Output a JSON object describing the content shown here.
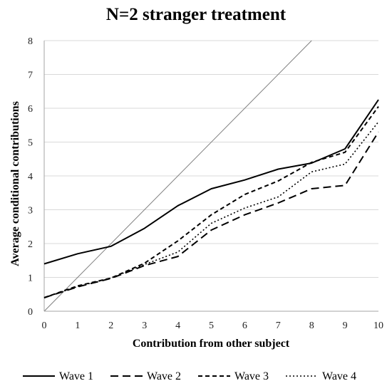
{
  "chart_data": {
    "type": "line",
    "title": "N=2 stranger treatment",
    "xlabel": "Contribution from other subject",
    "ylabel": "Average conditional contributions",
    "x": [
      0,
      1,
      2,
      3,
      4,
      5,
      6,
      7,
      8,
      9,
      10
    ],
    "xlim": [
      0,
      10
    ],
    "ylim": [
      0,
      8
    ],
    "xticks": [
      "0",
      "1",
      "2",
      "3",
      "4",
      "5",
      "6",
      "7",
      "8",
      "9",
      "10"
    ],
    "yticks": [
      "0",
      "1",
      "2",
      "3",
      "4",
      "5",
      "6",
      "7",
      "8"
    ],
    "grid": "horizontal",
    "legend_position": "bottom",
    "reference_line": {
      "from": [
        0,
        0
      ],
      "to": [
        8,
        8
      ],
      "color": "#7f7f7f"
    },
    "series": [
      {
        "name": "Wave 1",
        "style": "solid",
        "color": "#000000",
        "values": [
          1.4,
          1.7,
          1.92,
          2.45,
          3.12,
          3.62,
          3.88,
          4.2,
          4.38,
          4.8,
          6.25
        ]
      },
      {
        "name": "Wave 2",
        "style": "long-dash",
        "color": "#000000",
        "values": [
          0.4,
          0.72,
          0.97,
          1.35,
          1.62,
          2.4,
          2.85,
          3.2,
          3.62,
          3.72,
          5.3
        ]
      },
      {
        "name": "Wave 3",
        "style": "short-dash",
        "color": "#000000",
        "values": [
          0.4,
          0.75,
          0.98,
          1.42,
          2.08,
          2.85,
          3.45,
          3.85,
          4.4,
          4.7,
          6.05
        ]
      },
      {
        "name": "Wave 4",
        "style": "dotted",
        "color": "#000000",
        "values": [
          0.4,
          0.73,
          0.98,
          1.38,
          1.75,
          2.6,
          3.05,
          3.38,
          4.12,
          4.35,
          5.6
        ]
      }
    ]
  }
}
